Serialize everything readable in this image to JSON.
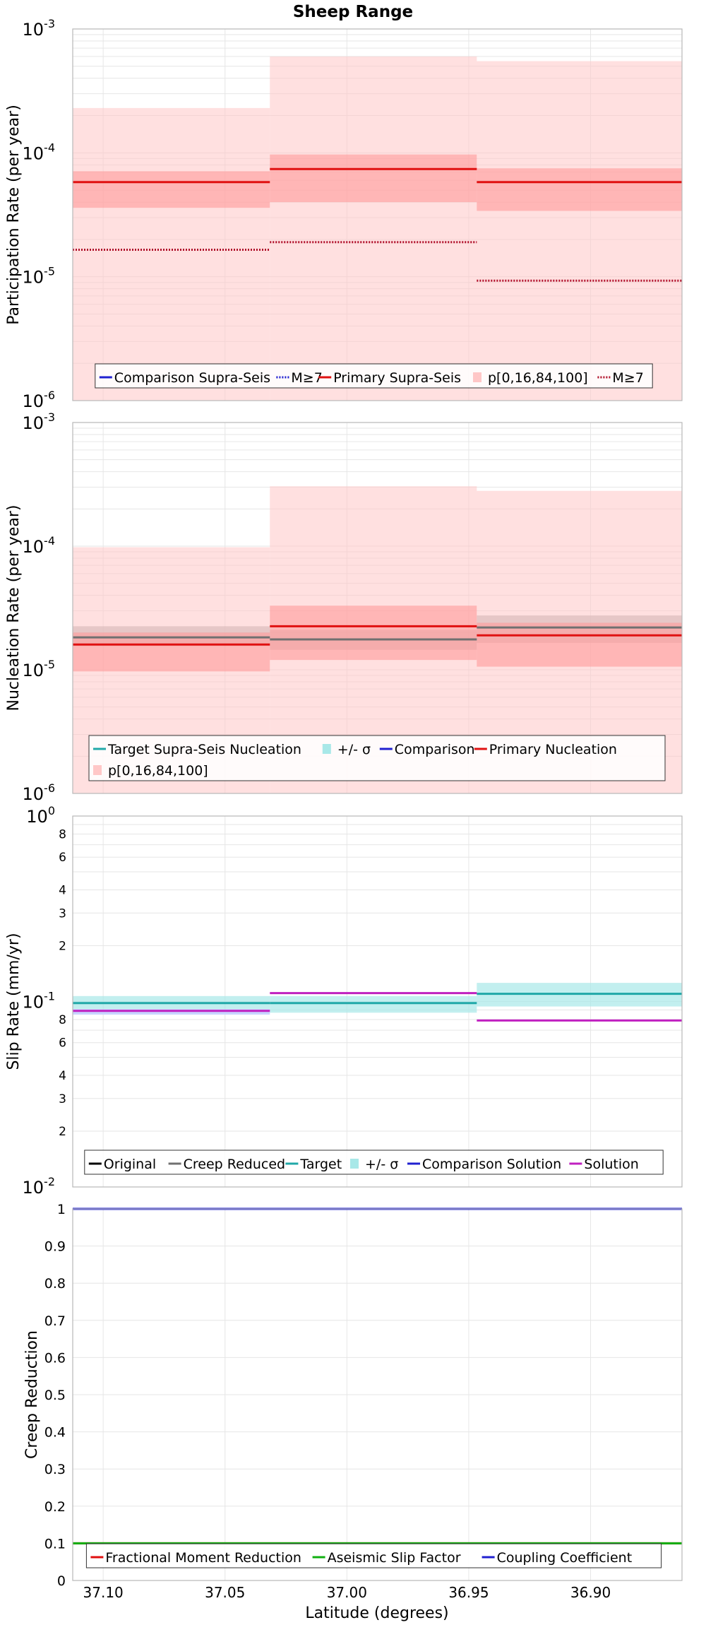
{
  "title": "Sheep Range",
  "x_axis": {
    "label": "Latitude (degrees)",
    "reversed": true,
    "range": [
      37.1125,
      36.8625
    ],
    "ticks": [
      37.1,
      37.05,
      37.0,
      36.95,
      36.9
    ],
    "tick_labels": [
      "37.10",
      "37.05",
      "37.00",
      "36.95",
      "36.90"
    ]
  },
  "colors": {
    "red": "#e01010",
    "pink_band": "#ffc7c7",
    "dark_red_dotted": "#b0102a",
    "blue": "#2020d0",
    "gray": "#707070",
    "teal": "#20a8a8",
    "light_teal": "#a8e8e8",
    "light_blue": "#c8d4ff",
    "magenta": "#c020c0",
    "green": "#10b010",
    "grid": "#e6e6e6"
  },
  "chart_data": [
    {
      "type": "line",
      "style": "step",
      "ylabel": "Participation Rate (per year)",
      "yscale": "log",
      "ylim": [
        1e-06,
        0.001
      ],
      "y_tick_labels": [
        "10^-6",
        "10^-5",
        "10^-4",
        "10^-3"
      ],
      "sections": [
        [
          37.1125,
          37.0316
        ],
        [
          37.0316,
          36.9467
        ],
        [
          36.9467,
          36.8625
        ]
      ],
      "series": [
        {
          "name": "Comparison Supra-Seis",
          "style": "solid",
          "color": "#2020d0",
          "values": []
        },
        {
          "name": "M≥7",
          "style": "dotted",
          "color": "#2020d0",
          "values": []
        },
        {
          "name": "Primary Supra-Seis",
          "style": "solid",
          "color": "#e01010",
          "values": [
            5.8e-05,
            7.4e-05,
            5.8e-05
          ]
        },
        {
          "name": "p[0,16,84,100]",
          "style": "band",
          "color": "#ffc7c7",
          "min": [
            1e-06,
            1e-06,
            1e-06
          ],
          "p16": [
            3.6e-05,
            4e-05,
            3.4e-05
          ],
          "p84": [
            7.1e-05,
            9.7e-05,
            7.5e-05
          ],
          "max": [
            0.00023,
            0.0006,
            0.00055
          ]
        },
        {
          "name": "M≥7",
          "style": "dotted",
          "color": "#b0102a",
          "values": [
            1.65e-05,
            1.9e-05,
            9.3e-06
          ]
        }
      ],
      "legend": {
        "placement": "bottom-center",
        "entries": [
          {
            "label": "Comparison Supra-Seis",
            "kind": "line",
            "color": "#2020d0"
          },
          {
            "label": "M≥7",
            "kind": "dotted",
            "color": "#2020d0"
          },
          {
            "label": "Primary Supra-Seis",
            "kind": "line",
            "color": "#e01010"
          },
          {
            "label": "p[0,16,84,100]",
            "kind": "band",
            "color": "#ffc7c7"
          },
          {
            "label": "M≥7",
            "kind": "dotted",
            "color": "#b0102a"
          }
        ]
      }
    },
    {
      "type": "line",
      "style": "step",
      "ylabel": "Nucleation Rate (per year)",
      "yscale": "log",
      "ylim": [
        1e-06,
        0.001
      ],
      "y_tick_labels": [
        "10^-6",
        "10^-5",
        "10^-4",
        "10^-3"
      ],
      "sections": [
        [
          37.1125,
          37.0316
        ],
        [
          37.0316,
          36.9467
        ],
        [
          36.9467,
          36.8625
        ]
      ],
      "series": [
        {
          "name": "Target Supra-Seis Nucleation",
          "style": "solid",
          "color": "#20a8a8",
          "values": []
        },
        {
          "name": "+/- σ",
          "style": "band",
          "color": "#b0b0b0",
          "low": [
            1.55e-05,
            1.45e-05,
            1.65e-05
          ],
          "high": [
            2.25e-05,
            2.1e-05,
            2.75e-05
          ]
        },
        {
          "name": "Comparison",
          "style": "solid",
          "color": "#2020d0",
          "values": []
        },
        {
          "name": "gray center",
          "style": "solid",
          "color": "#707070",
          "values": [
            1.83e-05,
            1.76e-05,
            2.2e-05
          ]
        },
        {
          "name": "Primary Nucleation",
          "style": "solid",
          "color": "#e01010",
          "values": [
            1.6e-05,
            2.25e-05,
            1.9e-05
          ]
        },
        {
          "name": "p[0,16,84,100]",
          "style": "band",
          "color": "#ffc7c7",
          "min": [
            1e-06,
            1e-06,
            1e-06
          ],
          "p16": [
            9.7e-06,
            1.2e-05,
            1.06e-05
          ],
          "p84": [
            2e-05,
            3.3e-05,
            2.4e-05
          ],
          "max": [
            9.8e-05,
            0.000305,
            0.00028
          ]
        }
      ],
      "legend": {
        "placement": "bottom-center",
        "entries": [
          {
            "label": "Target Supra-Seis Nucleation",
            "kind": "line",
            "color": "#20a8a8"
          },
          {
            "label": "+/- σ",
            "kind": "band",
            "color": "#a8e8e8"
          },
          {
            "label": "Comparison",
            "kind": "line",
            "color": "#2020d0"
          },
          {
            "label": "Primary Nucleation",
            "kind": "line",
            "color": "#e01010"
          },
          {
            "label": "p[0,16,84,100]",
            "kind": "band",
            "color": "#ffc7c7"
          }
        ]
      }
    },
    {
      "type": "line",
      "style": "step",
      "ylabel": "Slip Rate (mm/yr)",
      "yscale": "log",
      "ylim": [
        0.01,
        1
      ],
      "y_tick_labels": [
        "10^-2",
        "2",
        "3",
        "4",
        "6",
        "8",
        "10^-1",
        "2",
        "3",
        "4",
        "6",
        "8",
        "10^0"
      ],
      "sections": [
        [
          37.1125,
          37.0316
        ],
        [
          37.0316,
          36.9467
        ],
        [
          36.9467,
          36.8625
        ]
      ],
      "series": [
        {
          "name": "Original",
          "style": "solid",
          "color": "#000000",
          "values": []
        },
        {
          "name": "Creep Reduced",
          "style": "solid",
          "color": "#707070",
          "values": []
        },
        {
          "name": "Target",
          "style": "solid",
          "color": "#20a8a8",
          "values": [
            0.098,
            0.098,
            0.11
          ]
        },
        {
          "name": "+/- σ",
          "style": "band",
          "color": "#a8e8e8",
          "low": [
            0.091,
            0.087,
            0.094
          ],
          "high": [
            0.107,
            0.107,
            0.126
          ]
        },
        {
          "name": "Comparison Solution",
          "style": "solid",
          "color": "#2020d0",
          "values": []
        },
        {
          "name": "Solution",
          "style": "solid",
          "color": "#c020c0",
          "values": [
            0.089,
            0.111,
            0.079
          ]
        }
      ],
      "extra_bands": [
        {
          "color": "#c8d4ff",
          "low": [
            0.085
          ],
          "high": [
            0.091
          ],
          "sections": [
            [
              37.1125,
              37.0316
            ]
          ]
        }
      ],
      "legend": {
        "placement": "bottom-center",
        "entries": [
          {
            "label": "Original",
            "kind": "line",
            "color": "#000000"
          },
          {
            "label": "Creep Reduced",
            "kind": "line",
            "color": "#707070"
          },
          {
            "label": "Target",
            "kind": "line",
            "color": "#20a8a8"
          },
          {
            "label": "+/- σ",
            "kind": "band",
            "color": "#a8e8e8"
          },
          {
            "label": "Comparison Solution",
            "kind": "line",
            "color": "#2020d0"
          },
          {
            "label": "Solution",
            "kind": "line",
            "color": "#c020c0"
          }
        ]
      }
    },
    {
      "type": "line",
      "style": "step",
      "ylabel": "Creep Reduction",
      "yscale": "linear",
      "ylim": [
        0,
        1
      ],
      "y_tick_labels": [
        "0",
        "0.1",
        "0.2",
        "0.3",
        "0.4",
        "0.5",
        "0.6",
        "0.7",
        "0.8",
        "0.9",
        "1"
      ],
      "sections": [
        [
          37.1125,
          36.8625
        ]
      ],
      "series": [
        {
          "name": "Fractional Moment Reduction",
          "style": "solid",
          "color": "#e01010",
          "values": [
            0.1
          ]
        },
        {
          "name": "Aseismic Slip Factor",
          "style": "solid",
          "color": "#10b010",
          "values": [
            0.1
          ]
        },
        {
          "name": "Coupling Coefficient",
          "style": "solid",
          "color": "#2020d0",
          "values": [
            1.0
          ]
        }
      ],
      "legend": {
        "placement": "bottom-center",
        "entries": [
          {
            "label": "Fractional Moment Reduction",
            "kind": "line",
            "color": "#e01010"
          },
          {
            "label": "Aseismic Slip Factor",
            "kind": "line",
            "color": "#10b010"
          },
          {
            "label": "Coupling Coefficient",
            "kind": "line",
            "color": "#2020d0"
          }
        ]
      }
    }
  ]
}
